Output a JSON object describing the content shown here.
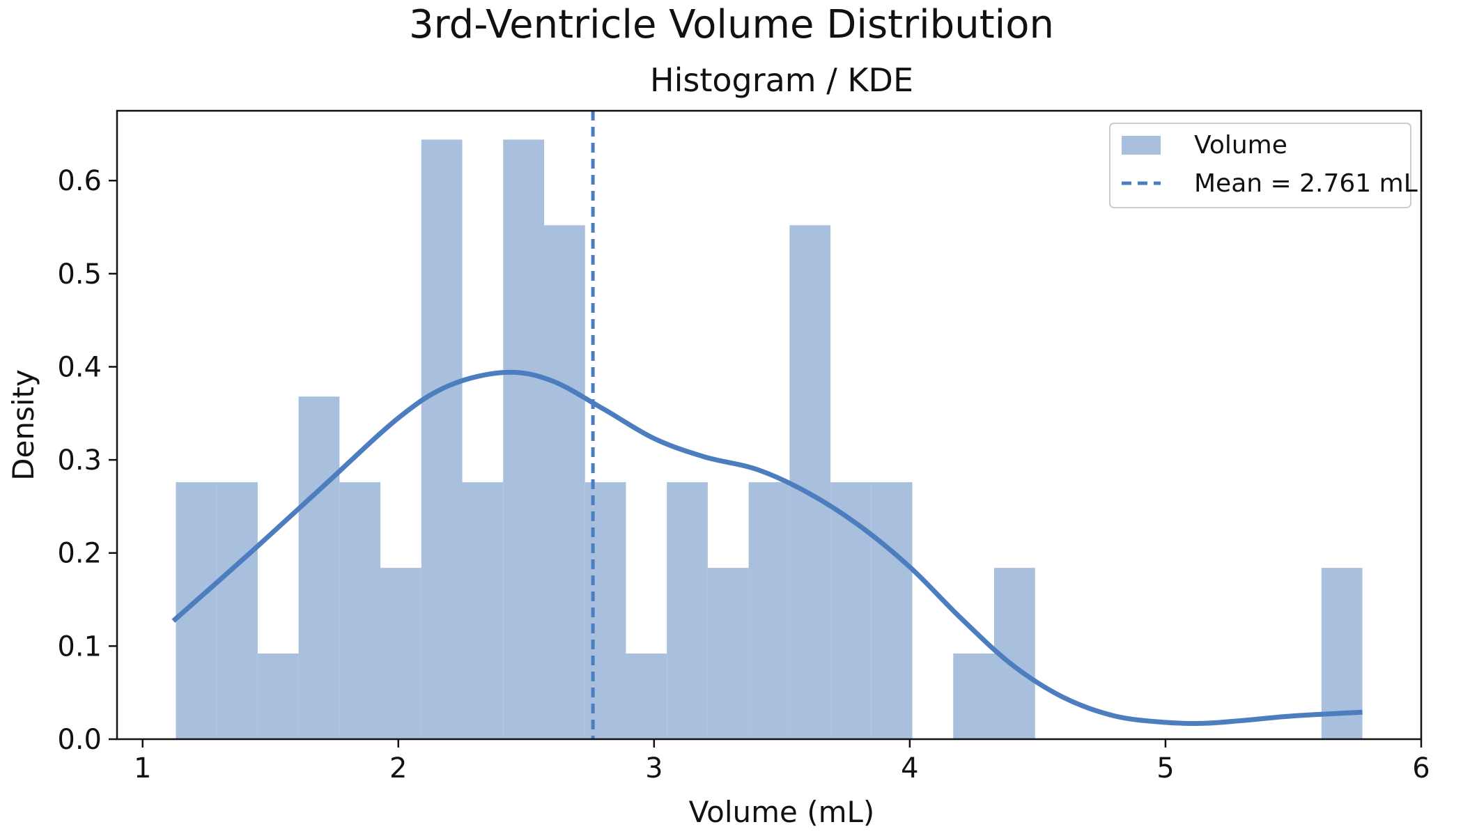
{
  "chart_data": {
    "type": "bar",
    "title": "3rd-Ventricle Volume Distribution",
    "subtitle": "Histogram / KDE",
    "xlabel": "Volume (mL)",
    "ylabel": "Density",
    "xlim": [
      0.9,
      6.0
    ],
    "ylim": [
      0.0,
      0.675
    ],
    "xticks": [
      1,
      2,
      3,
      4,
      5,
      6
    ],
    "yticks": [
      0.0,
      0.1,
      0.2,
      0.3,
      0.4,
      0.5,
      0.6
    ],
    "xtick_labels": [
      "1",
      "2",
      "3",
      "4",
      "5",
      "6"
    ],
    "ytick_labels": [
      "0.0",
      "0.1",
      "0.2",
      "0.3",
      "0.4",
      "0.5",
      "0.6"
    ],
    "grid": false,
    "legend": {
      "position": "top-right"
    },
    "colors": {
      "histogram": "#a8bfdd",
      "kde": "#4c7dbf",
      "axes": "#111111"
    },
    "histogram": {
      "name": "Volume",
      "bin_start": 1.13,
      "bin_width": 0.16,
      "densities": [
        0.276,
        0.276,
        0.092,
        0.368,
        0.276,
        0.184,
        0.644,
        0.276,
        0.644,
        0.552,
        0.276,
        0.092,
        0.276,
        0.184,
        0.276,
        0.552,
        0.276,
        0.276,
        0.0,
        0.092,
        0.184,
        0.0,
        0.0,
        0.0,
        0.0,
        0.0,
        0.0,
        0.0,
        0.184
      ]
    },
    "kde": {
      "x": [
        1.12,
        1.4,
        1.7,
        2.0,
        2.2,
        2.42,
        2.6,
        2.8,
        3.0,
        3.2,
        3.4,
        3.6,
        3.8,
        4.0,
        4.2,
        4.4,
        4.6,
        4.8,
        5.0,
        5.15,
        5.3,
        5.5,
        5.77
      ],
      "y": [
        0.127,
        0.195,
        0.27,
        0.345,
        0.38,
        0.394,
        0.385,
        0.355,
        0.323,
        0.303,
        0.29,
        0.265,
        0.23,
        0.185,
        0.13,
        0.08,
        0.045,
        0.025,
        0.018,
        0.017,
        0.02,
        0.025,
        0.029
      ]
    },
    "mean": {
      "value": 2.761,
      "label": "Mean = 2.761 mL"
    }
  }
}
